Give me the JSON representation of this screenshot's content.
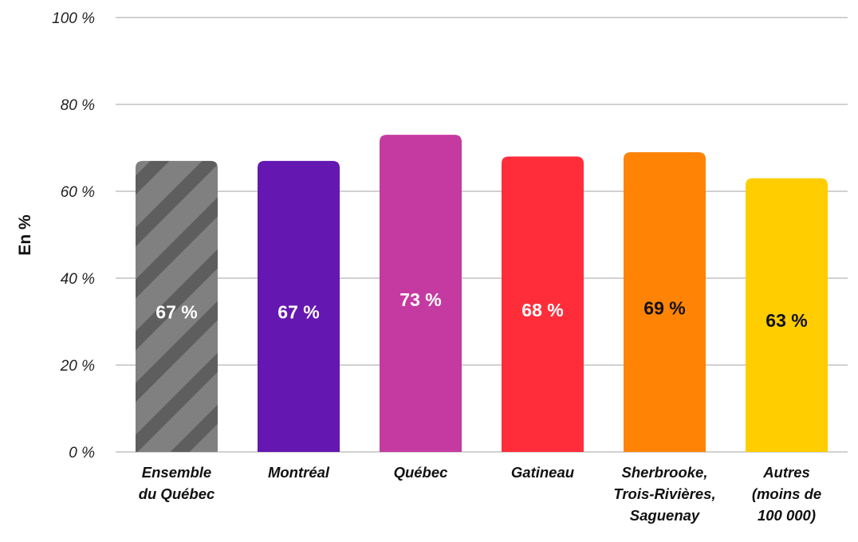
{
  "chart_data": {
    "type": "bar",
    "ylabel": "En %",
    "ylim": [
      0,
      100
    ],
    "yticks": [
      0,
      20,
      40,
      60,
      80,
      100
    ],
    "ytick_labels": [
      "0 %",
      "20 %",
      "40 %",
      "60 %",
      "80 %",
      "100 %"
    ],
    "grid": true,
    "categories": [
      [
        "Ensemble",
        "du Québec"
      ],
      [
        "Montréal"
      ],
      [
        "Québec"
      ],
      [
        "Gatineau"
      ],
      [
        "Sherbrooke,",
        "Trois-Rivières,",
        "Saguenay"
      ],
      [
        "Autres",
        "(moins de",
        "100 000)"
      ]
    ],
    "values": [
      67,
      67,
      73,
      68,
      69,
      63
    ],
    "value_labels": [
      "67 %",
      "67 %",
      "73 %",
      "68 %",
      "69 %",
      "63 %"
    ],
    "colors": [
      "#808080",
      "#6517B1",
      "#C53AA0",
      "#FF2D3A",
      "#FF8305",
      "#FFCD00"
    ],
    "hatched": [
      true,
      false,
      false,
      false,
      false,
      false
    ],
    "label_colors": [
      "#ffffff",
      "#ffffff",
      "#ffffff",
      "#ffffff",
      "#111111",
      "#111111"
    ]
  }
}
